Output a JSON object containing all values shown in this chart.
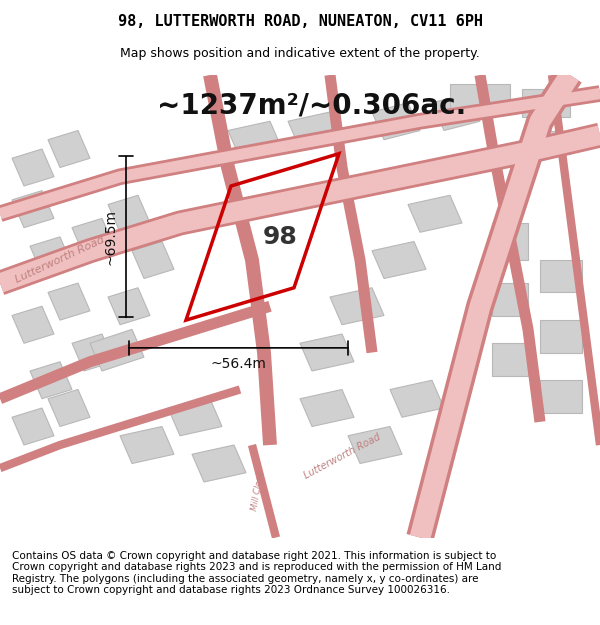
{
  "title": "98, LUTTERWORTH ROAD, NUNEATON, CV11 6PH",
  "subtitle": "Map shows position and indicative extent of the property.",
  "area_label": "~1237m²/~0.306ac.",
  "property_number": "98",
  "dim_height": "~69.5m",
  "dim_width": "~56.4m",
  "road_label_1": "Lutterworth Road",
  "road_label_2": "Lutterworth Road",
  "road_label_3": "Mill Close",
  "footer_text": "Contains OS data © Crown copyright and database right 2021. This information is subject to Crown copyright and database rights 2023 and is reproduced with the permission of HM Land Registry. The polygons (including the associated geometry, namely x, y co-ordinates) are subject to Crown copyright and database rights 2023 Ordnance Survey 100026316.",
  "bg_color": "#f5f5f5",
  "map_bg": "#f0efef",
  "road_color": "#e8a0a0",
  "building_fill": "#d8d8d8",
  "building_edge": "#c0c0c0",
  "property_color": "#cc0000",
  "text_color": "#000000",
  "footer_color": "#000000",
  "title_fontsize": 11,
  "subtitle_fontsize": 9,
  "area_fontsize": 20,
  "property_num_fontsize": 18,
  "dim_fontsize": 10,
  "footer_fontsize": 7.5
}
